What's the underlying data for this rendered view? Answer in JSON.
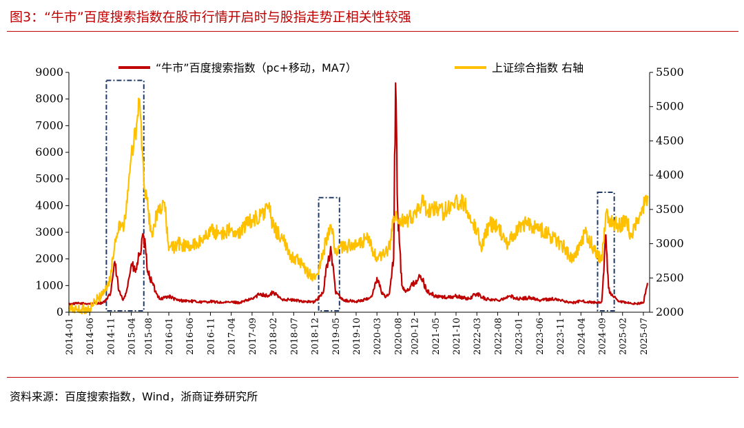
{
  "figure": {
    "title": "图3：“牛市”百度搜索指数在股市行情开启时与股指走势正相关性较强",
    "source": "资料来源：百度搜索指数，Wind，浙商证券研究所"
  },
  "colors": {
    "accent": "#c00000",
    "series_red": "#c00000",
    "series_gold": "#ffc000",
    "box": "#1f3864"
  },
  "chart_data": {
    "type": "line",
    "x_categories": [
      "2014-01",
      "2014-06",
      "2014-11",
      "2015-04",
      "2015-08",
      "2016-01",
      "2016-06",
      "2016-11",
      "2017-04",
      "2017-09",
      "2018-02",
      "2018-07",
      "2018-12",
      "2019-05",
      "2019-10",
      "2020-03",
      "2020-08",
      "2020-12",
      "2021-05",
      "2021-10",
      "2022-03",
      "2022-08",
      "2023-01",
      "2023-06",
      "2023-11",
      "2024-04",
      "2024-09",
      "2025-02",
      "2025-07"
    ],
    "y_left": {
      "min": 0,
      "max": 9000,
      "ticks": [
        0,
        1000,
        2000,
        3000,
        4000,
        5000,
        6000,
        7000,
        8000,
        9000
      ]
    },
    "y_right": {
      "min": 2000,
      "max": 5500,
      "ticks": [
        2000,
        2500,
        3000,
        3500,
        4000,
        4500,
        5000,
        5500
      ]
    },
    "grid": false,
    "legend_position": "top",
    "series": [
      {
        "name": "“牛市”百度搜索指数（pc+移动，MA7）",
        "axis": "left",
        "color": "#c00000",
        "points": [
          [
            "2014-01",
            300
          ],
          [
            "2014-03",
            330
          ],
          [
            "2014-06",
            320
          ],
          [
            "2014-09",
            350
          ],
          [
            "2014-10",
            450
          ],
          [
            "2014-11",
            700
          ],
          [
            "2014-12",
            1900
          ],
          [
            "2015-01",
            800
          ],
          [
            "2015-02",
            450
          ],
          [
            "2015-03",
            900
          ],
          [
            "2015-04",
            1800
          ],
          [
            "2015-05",
            1500
          ],
          [
            "2015-06",
            2200
          ],
          [
            "2015-07",
            2800
          ],
          [
            "2015-08",
            1500
          ],
          [
            "2015-09",
            1100
          ],
          [
            "2015-10",
            700
          ],
          [
            "2015-11",
            500
          ],
          [
            "2016-01",
            600
          ],
          [
            "2016-03",
            450
          ],
          [
            "2016-06",
            420
          ],
          [
            "2016-09",
            380
          ],
          [
            "2016-11",
            400
          ],
          [
            "2017-02",
            360
          ],
          [
            "2017-04",
            380
          ],
          [
            "2017-06",
            360
          ],
          [
            "2017-09",
            500
          ],
          [
            "2017-11",
            700
          ],
          [
            "2018-01",
            600
          ],
          [
            "2018-02",
            750
          ],
          [
            "2018-04",
            500
          ],
          [
            "2018-07",
            450
          ],
          [
            "2018-10",
            400
          ],
          [
            "2018-12",
            380
          ],
          [
            "2019-02",
            700
          ],
          [
            "2019-03",
            1800
          ],
          [
            "2019-04",
            2300
          ],
          [
            "2019-05",
            800
          ],
          [
            "2019-07",
            450
          ],
          [
            "2019-10",
            400
          ],
          [
            "2020-01",
            500
          ],
          [
            "2020-02",
            700
          ],
          [
            "2020-03",
            1300
          ],
          [
            "2020-04",
            800
          ],
          [
            "2020-05",
            550
          ],
          [
            "2020-06",
            700
          ],
          [
            "2020-07",
            2000
          ],
          [
            "2020-07-15",
            8600
          ],
          [
            "2020-08",
            3700
          ],
          [
            "2020-09",
            1000
          ],
          [
            "2020-10",
            800
          ],
          [
            "2020-12",
            1100
          ],
          [
            "2021-01",
            1300
          ],
          [
            "2021-02",
            1200
          ],
          [
            "2021-03",
            800
          ],
          [
            "2021-05",
            600
          ],
          [
            "2021-08",
            550
          ],
          [
            "2021-10",
            600
          ],
          [
            "2022-01",
            500
          ],
          [
            "2022-03",
            700
          ],
          [
            "2022-05",
            500
          ],
          [
            "2022-08",
            450
          ],
          [
            "2022-11",
            600
          ],
          [
            "2023-01",
            500
          ],
          [
            "2023-04",
            550
          ],
          [
            "2023-06",
            450
          ],
          [
            "2023-09",
            500
          ],
          [
            "2023-11",
            450
          ],
          [
            "2024-02",
            350
          ],
          [
            "2024-04",
            420
          ],
          [
            "2024-06",
            380
          ],
          [
            "2024-08",
            350
          ],
          [
            "2024-09",
            400
          ],
          [
            "2024-10",
            2900
          ],
          [
            "2024-10-20",
            900
          ],
          [
            "2024-11",
            700
          ],
          [
            "2025-01",
            400
          ],
          [
            "2025-03",
            350
          ],
          [
            "2025-05",
            320
          ],
          [
            "2025-07",
            350
          ],
          [
            "2025-08",
            1100
          ]
        ]
      },
      {
        "name": "上证综合指数 右轴",
        "axis": "right",
        "color": "#ffc000",
        "points": [
          [
            "2014-01",
            2050
          ],
          [
            "2014-03",
            2040
          ],
          [
            "2014-06",
            2050
          ],
          [
            "2014-08",
            2200
          ],
          [
            "2014-10",
            2350
          ],
          [
            "2014-11",
            2500
          ],
          [
            "2014-12",
            3000
          ],
          [
            "2015-01",
            3300
          ],
          [
            "2015-02",
            3250
          ],
          [
            "2015-03",
            3600
          ],
          [
            "2015-04",
            4300
          ],
          [
            "2015-05",
            4600
          ],
          [
            "2015-06",
            5100
          ],
          [
            "2015-07",
            3900
          ],
          [
            "2015-08",
            3500
          ],
          [
            "2015-09",
            3100
          ],
          [
            "2015-10",
            3400
          ],
          [
            "2015-11",
            3500
          ],
          [
            "2015-12",
            3600
          ],
          [
            "2016-01",
            2900
          ],
          [
            "2016-03",
            3000
          ],
          [
            "2016-06",
            2950
          ],
          [
            "2016-09",
            3050
          ],
          [
            "2016-11",
            3200
          ],
          [
            "2017-01",
            3150
          ],
          [
            "2017-04",
            3200
          ],
          [
            "2017-05",
            3100
          ],
          [
            "2017-07",
            3250
          ],
          [
            "2017-09",
            3350
          ],
          [
            "2017-11",
            3400
          ],
          [
            "2018-01",
            3550
          ],
          [
            "2018-02",
            3250
          ],
          [
            "2018-04",
            3100
          ],
          [
            "2018-06",
            2850
          ],
          [
            "2018-08",
            2750
          ],
          [
            "2018-10",
            2600
          ],
          [
            "2018-12",
            2500
          ],
          [
            "2019-01",
            2600
          ],
          [
            "2019-03",
            3100
          ],
          [
            "2019-04",
            3250
          ],
          [
            "2019-05",
            2900
          ],
          [
            "2019-07",
            2950
          ],
          [
            "2019-09",
            3000
          ],
          [
            "2019-10",
            2950
          ],
          [
            "2019-12",
            3050
          ],
          [
            "2020-01",
            3050
          ],
          [
            "2020-03",
            2750
          ],
          [
            "2020-05",
            2850
          ],
          [
            "2020-06",
            2950
          ],
          [
            "2020-07",
            3400
          ],
          [
            "2020-08",
            3350
          ],
          [
            "2020-10",
            3300
          ],
          [
            "2020-12",
            3450
          ],
          [
            "2021-02",
            3600
          ],
          [
            "2021-03",
            3450
          ],
          [
            "2021-05",
            3550
          ],
          [
            "2021-07",
            3450
          ],
          [
            "2021-09",
            3600
          ],
          [
            "2021-12",
            3600
          ],
          [
            "2022-01",
            3450
          ],
          [
            "2022-03",
            3200
          ],
          [
            "2022-04",
            2950
          ],
          [
            "2022-06",
            3300
          ],
          [
            "2022-08",
            3250
          ],
          [
            "2022-10",
            3000
          ],
          [
            "2022-12",
            3150
          ],
          [
            "2023-02",
            3300
          ],
          [
            "2023-05",
            3250
          ],
          [
            "2023-08",
            3150
          ],
          [
            "2023-10",
            3050
          ],
          [
            "2023-12",
            2950
          ],
          [
            "2024-02",
            2750
          ],
          [
            "2024-04",
            3050
          ],
          [
            "2024-05",
            3150
          ],
          [
            "2024-07",
            2950
          ],
          [
            "2024-09",
            2750
          ],
          [
            "2024-10",
            3450
          ],
          [
            "2024-11",
            3350
          ],
          [
            "2025-01",
            3250
          ],
          [
            "2025-03",
            3350
          ],
          [
            "2025-04",
            3100
          ],
          [
            "2025-06",
            3400
          ],
          [
            "2025-08",
            3700
          ]
        ]
      }
    ],
    "highlight_boxes": [
      {
        "x_start": "2014-10",
        "x_end": "2015-07",
        "y_top_left": 8700
      },
      {
        "x_start": "2019-01",
        "x_end": "2019-06",
        "y_top_left": 4300
      },
      {
        "x_start": "2024-08",
        "x_end": "2024-12",
        "y_top_left": 4500
      }
    ]
  }
}
